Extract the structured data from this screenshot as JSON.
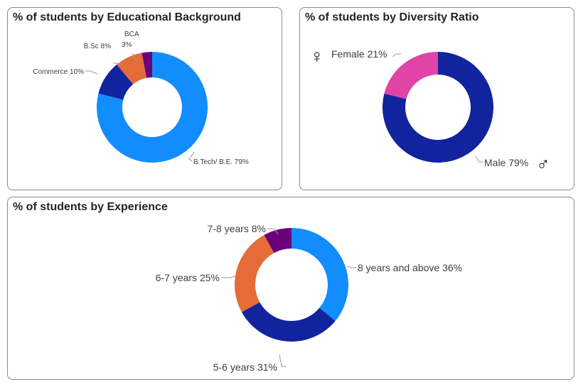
{
  "colors": {
    "light_blue": "#118DFF",
    "dark_blue": "#12239E",
    "orange": "#E66C37",
    "purple": "#6B007B",
    "pink": "#E044A7"
  },
  "chart_data": [
    {
      "type": "donut",
      "title": "% of students by Educational Background",
      "categories": [
        "B.Tech/ B.E.",
        "Commerce",
        "B.Sc",
        "BCA"
      ],
      "values": [
        79,
        10,
        8,
        3
      ],
      "labels": [
        "B.Tech/ B.E. 79%",
        "Commerce 10%",
        "B.Sc 8%",
        "BCA",
        "3%"
      ],
      "colors": [
        "#118DFF",
        "#12239E",
        "#E66C37",
        "#6B007B"
      ]
    },
    {
      "type": "donut",
      "title": "% of students by Diversity Ratio",
      "categories": [
        "Male",
        "Female"
      ],
      "values": [
        79,
        21
      ],
      "labels": [
        "Male 79%",
        "Female 21%"
      ],
      "icons": [
        "male-icon",
        "female-icon"
      ],
      "icon_glyphs": [
        "♂",
        "♀"
      ],
      "colors": [
        "#12239E",
        "#E044A7"
      ]
    },
    {
      "type": "donut",
      "title": "% of students by Experience",
      "categories": [
        "8 years and above",
        "5-6 years",
        "6-7 years",
        "7-8 years"
      ],
      "values": [
        36,
        31,
        25,
        8
      ],
      "labels": [
        "8 years and above 36%",
        "5-6 years 31%",
        "6-7 years 25%",
        "7-8 years 8%"
      ],
      "colors": [
        "#118DFF",
        "#12239E",
        "#E66C37",
        "#6B007B"
      ]
    }
  ]
}
